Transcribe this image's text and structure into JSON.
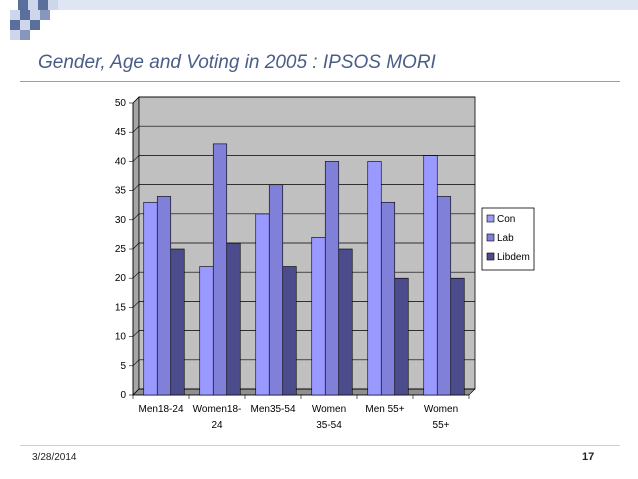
{
  "slide": {
    "title": "Gender, Age and Voting in 2005 : IPSOS MORI",
    "date": "3/28/2014",
    "page_number": "17"
  },
  "colors": {
    "title": "#4a5d88",
    "plot_bg": "#c0c0c0",
    "con": "#9999ff",
    "lab": "#8080d8",
    "libdem": "#4c4c8c"
  },
  "chart_data": {
    "type": "bar",
    "title": "",
    "xlabel": "",
    "ylabel": "",
    "ylim": [
      0,
      50
    ],
    "yticks": [
      0,
      5,
      10,
      15,
      20,
      25,
      30,
      35,
      40,
      45,
      50
    ],
    "grid": true,
    "legend_position": "right",
    "categories": [
      [
        "Men18-24"
      ],
      [
        "Women18-",
        "24"
      ],
      [
        "Men35-54"
      ],
      [
        "Women",
        "35-54"
      ],
      [
        "Men 55+"
      ],
      [
        "Women",
        "55+"
      ]
    ],
    "series": [
      {
        "name": "Con",
        "values": [
          33,
          22,
          31,
          27,
          40,
          41
        ]
      },
      {
        "name": "Lab",
        "values": [
          34,
          43,
          36,
          40,
          33,
          34
        ]
      },
      {
        "name": "Libdem",
        "values": [
          25,
          26,
          22,
          25,
          20,
          20
        ]
      }
    ]
  }
}
